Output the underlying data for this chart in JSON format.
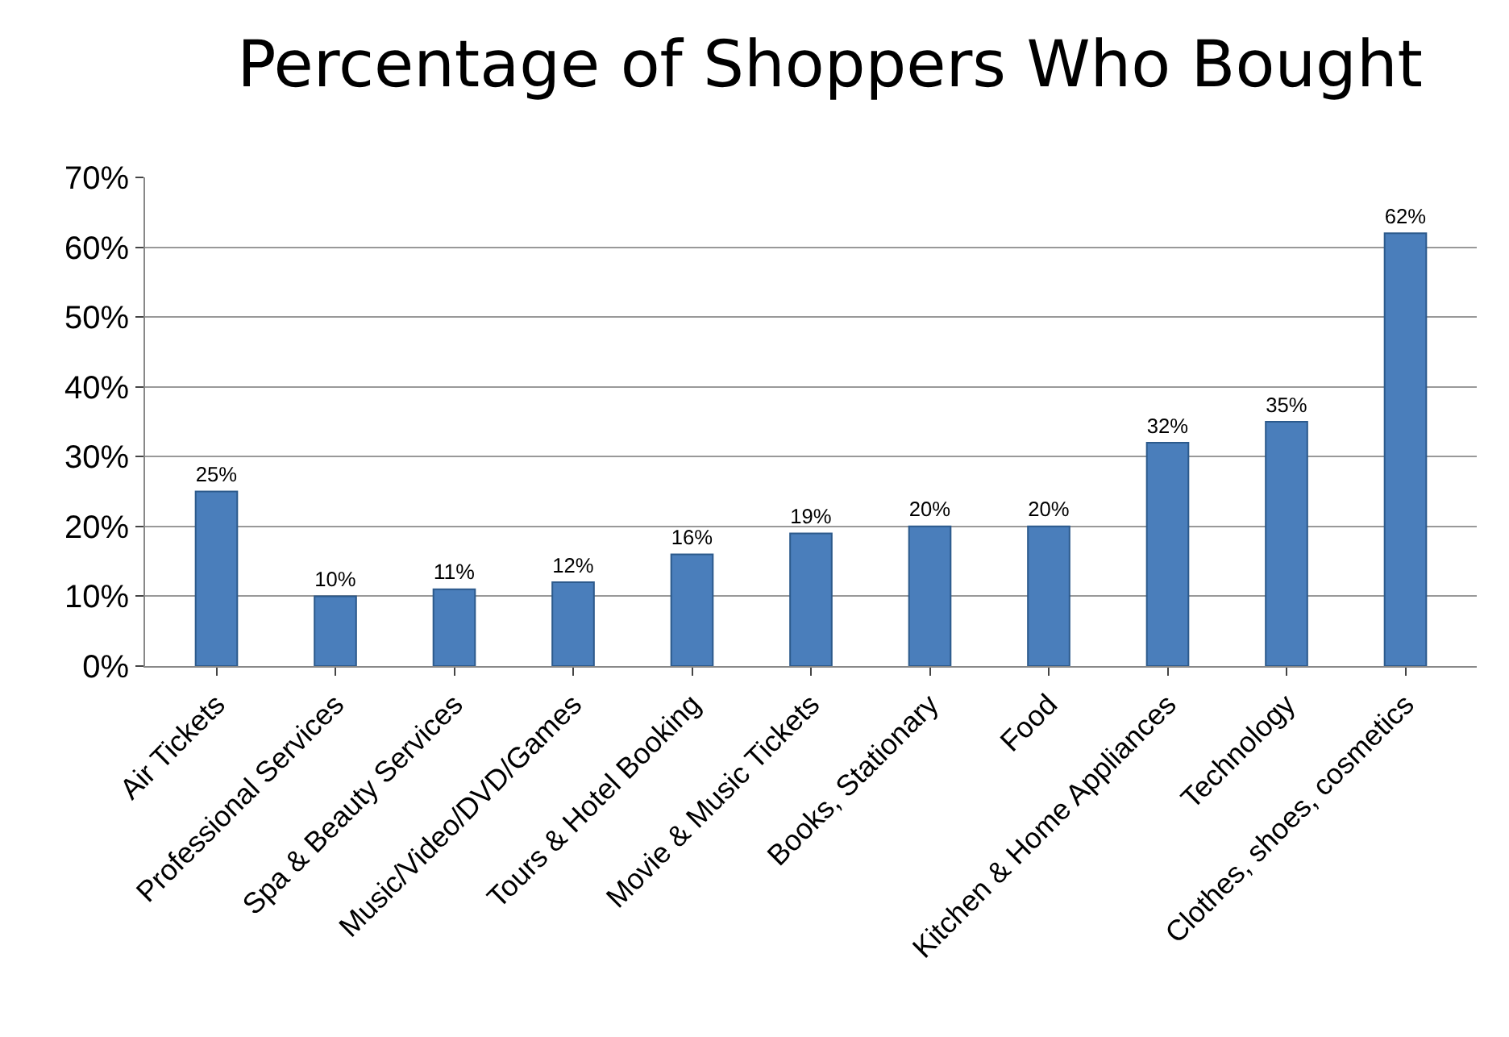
{
  "chart_data": {
    "type": "bar",
    "title": "Percentage of Shoppers Who Bought",
    "categories": [
      "Air Tickets",
      "Professional Services",
      "Spa & Beauty Services",
      "Music/Video/DVD/Games",
      "Tours & Hotel Booking",
      "Movie & Music Tickets",
      "Books, Stationary",
      "Food",
      "Kitchen & Home Appliances",
      "Technology",
      "Clothes, shoes, cosmetics"
    ],
    "values": [
      25,
      10,
      11,
      12,
      16,
      19,
      20,
      20,
      32,
      35,
      62
    ],
    "value_labels": [
      "25%",
      "10%",
      "11%",
      "12%",
      "16%",
      "19%",
      "20%",
      "20%",
      "32%",
      "35%",
      "62%"
    ],
    "color": "#4a7ebb",
    "ylim": [
      0,
      70
    ],
    "yticks": [
      {
        "value": 0,
        "label": "0%"
      },
      {
        "value": 10,
        "label": "10%"
      },
      {
        "value": 20,
        "label": "20%"
      },
      {
        "value": 30,
        "label": "30%"
      },
      {
        "value": 40,
        "label": "40%"
      },
      {
        "value": 50,
        "label": "50%"
      },
      {
        "value": 60,
        "label": "60%"
      },
      {
        "value": 70,
        "label": "70%"
      }
    ],
    "grid": "y"
  }
}
